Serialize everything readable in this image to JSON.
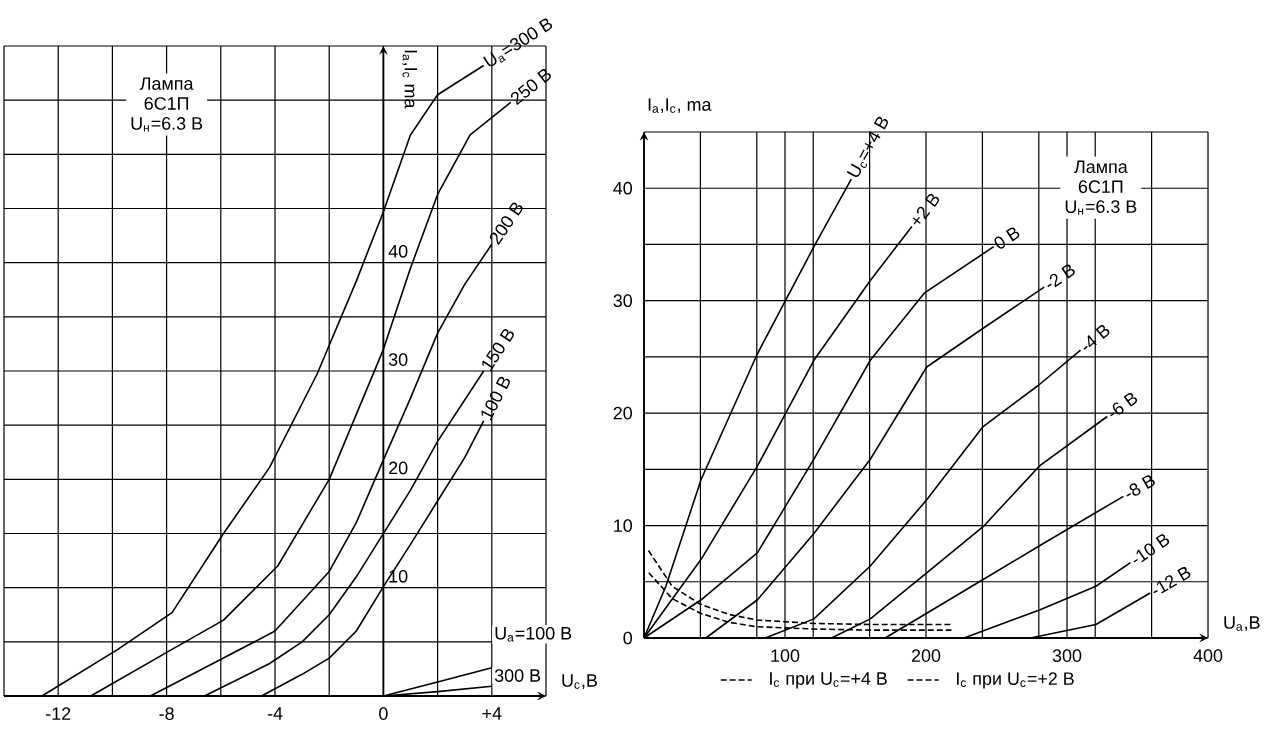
{
  "chart_data": [
    {
      "type": "line",
      "xlabel": "U$_{c}$,В",
      "ylabel": "I$_{a}$,I$_{c}$ ma",
      "annotations": [
        "Лампа",
        "6С1П",
        "U$_{н}$=6.3 В"
      ],
      "xlim": [
        -14,
        6
      ],
      "ylim": [
        0,
        60
      ],
      "xticks": [
        {
          "value": -14,
          "label": null
        },
        -12,
        {
          "value": -10,
          "label": null
        },
        -8,
        {
          "value": -6,
          "label": null
        },
        -4,
        {
          "value": -2,
          "label": null
        },
        0,
        {
          "value": 2,
          "label": null
        },
        {
          "value": 4,
          "label": "+4"
        },
        {
          "value": 6,
          "label": null
        }
      ],
      "yticks": [
        {
          "value": 0,
          "label": null
        },
        {
          "value": 5,
          "label": null
        },
        10,
        {
          "value": 15,
          "label": null
        },
        20,
        {
          "value": 25,
          "label": null
        },
        30,
        {
          "value": 35,
          "label": null
        },
        40,
        {
          "value": 45,
          "label": null
        },
        {
          "value": 50,
          "label": null
        },
        {
          "value": 55,
          "label": null
        },
        {
          "value": 60,
          "label": null
        }
      ],
      "grid": true,
      "series": [
        {
          "name": "U$_{a}$=300 В",
          "color": "#000000",
          "x": [
            -12.6,
            -9.8,
            -7.8,
            -5.9,
            -4.2,
            -2.45,
            -1,
            0,
            1,
            2,
            3.7
          ],
          "values": [
            0,
            4.3,
            7.7,
            15,
            21.1,
            29.7,
            38.3,
            44.7,
            51.8,
            55.5,
            58.2
          ]
        },
        {
          "name": "250 В",
          "color": "#000000",
          "x": [
            -10.8,
            -7.8,
            -5.9,
            -3.9,
            -2,
            -1,
            0,
            1,
            2,
            3.2,
            4.7
          ],
          "values": [
            0,
            4.3,
            7,
            12,
            20,
            26,
            32,
            39.5,
            46.3,
            51.8,
            54.8
          ]
        },
        {
          "name": "200 В",
          "color": "#000000",
          "x": [
            -8.6,
            -5.9,
            -4,
            -2,
            -1,
            0,
            1,
            2,
            3,
            4
          ],
          "values": [
            0,
            3.5,
            6,
            11.5,
            16,
            21.8,
            27.5,
            33.5,
            38,
            41.7
          ]
        },
        {
          "name": "150 В",
          "color": "#000000",
          "x": [
            -6.6,
            -4.2,
            -3,
            -2,
            -1,
            0,
            1,
            2,
            3.7
          ],
          "values": [
            0,
            3,
            5,
            7.5,
            11,
            15,
            19,
            23.5,
            30
          ]
        },
        {
          "name": "100 В",
          "color": "#000000",
          "x": [
            -4.5,
            -3,
            -2,
            -1,
            0,
            1,
            2,
            3,
            3.7
          ],
          "values": [
            0,
            2,
            3.5,
            6,
            10.1,
            14,
            18,
            22,
            25.4
          ]
        },
        {
          "name": "U$_{a}$=100 В",
          "color": "#000000",
          "x": [
            0,
            2,
            4
          ],
          "values": [
            0,
            1.3,
            2.6
          ]
        },
        {
          "name": "300 В",
          "color": "#000000",
          "x": [
            0,
            2,
            4
          ],
          "values": [
            0,
            0.4,
            0.9
          ]
        }
      ]
    },
    {
      "type": "line",
      "xlabel": "U$_{a}$,В",
      "ylabel": "I$_{a}$,I$_{c}$, ma",
      "annotations": [
        "Лампа",
        "6С1П",
        "U$_{н}$=6.3 В"
      ],
      "xlim": [
        0,
        400
      ],
      "ylim": [
        0,
        45
      ],
      "legend": "bottom",
      "xticks": [
        {
          "value": 0,
          "label": null
        },
        {
          "value": 40,
          "label": null
        },
        {
          "value": 80,
          "label": null
        },
        100,
        {
          "value": 120,
          "label": null
        },
        {
          "value": 160,
          "label": null
        },
        200,
        {
          "value": 240,
          "label": null
        },
        {
          "value": 280,
          "label": null
        },
        300,
        {
          "value": 320,
          "label": null
        },
        {
          "value": 360,
          "label": null
        },
        400
      ],
      "yticks": [
        0,
        {
          "value": 5,
          "label": null
        },
        10,
        {
          "value": 15,
          "label": null
        },
        20,
        {
          "value": 25,
          "label": null
        },
        30,
        {
          "value": 35,
          "label": null
        },
        40,
        {
          "value": 45,
          "label": null
        }
      ],
      "grid": true,
      "series": [
        {
          "name": "U$_{c}$=+4 В",
          "color": "#000000",
          "x": [
            0,
            15.5,
            40.5,
            80.5,
            120.5,
            147
          ],
          "values": [
            0,
            4.6,
            14.1,
            25.3,
            34.8,
            40.8
          ]
        },
        {
          "name": "+2 В",
          "color": "#000000",
          "x": [
            0,
            40.5,
            80.5,
            120.5,
            160.5,
            190
          ],
          "values": [
            0,
            7,
            15.3,
            24.7,
            31.8,
            36.6
          ]
        },
        {
          "name": "0 В",
          "color": "#000000",
          "x": [
            0,
            40.5,
            80.5,
            120.5,
            160.5,
            199,
            248
          ],
          "values": [
            0,
            3.4,
            7.6,
            15.9,
            24.7,
            30.7,
            34.8
          ]
        },
        {
          "name": "-2 В",
          "color": "#000000",
          "x": [
            43.8,
            80.5,
            120.5,
            160.5,
            200.5,
            240,
            283.8
          ],
          "values": [
            0,
            3.4,
            9.3,
            15.9,
            24.1,
            27.5,
            31.2
          ]
        },
        {
          "name": "-4 В",
          "color": "#000000",
          "x": [
            86,
            120.5,
            160.5,
            200.5,
            240.5,
            280,
            309.6
          ],
          "values": [
            0,
            1.7,
            6.4,
            12.3,
            18.8,
            22.5,
            25.6
          ]
        },
        {
          "name": "-6 В",
          "color": "#000000",
          "x": [
            133,
            160.5,
            200.5,
            240.5,
            280.5,
            328.5
          ],
          "values": [
            0,
            1.7,
            5.8,
            9.9,
            15.3,
            19.7
          ]
        },
        {
          "name": "-8 В",
          "color": "#000000",
          "x": [
            171,
            200.5,
            240.5,
            280.5,
            340
          ],
          "values": [
            0,
            2.2,
            5.2,
            8.2,
            12.6
          ]
        },
        {
          "name": "-10 В",
          "color": "#000000",
          "x": [
            227,
            280.5,
            320.5,
            345
          ],
          "values": [
            0,
            2.5,
            4.6,
            6.7
          ]
        },
        {
          "name": "-12 В",
          "color": "#000000",
          "x": [
            274,
            320.5,
            359
          ],
          "values": [
            0,
            1.2,
            4
          ]
        },
        {
          "name": "I$_{c}$ при U$_{c}$=+4 В",
          "color": "#000000",
          "line_style": "dashed",
          "x": [
            2,
            20,
            40,
            60,
            80,
            120,
            160,
            218
          ],
          "values": [
            8,
            4.6,
            3,
            2.1,
            1.6,
            1.3,
            1.2,
            1.2
          ]
        },
        {
          "name": "I$_{c}$ при U$_{c}$=+2 В",
          "color": "#000000",
          "line_style": "dashed",
          "x": [
            2,
            20,
            40,
            60,
            80,
            120,
            160,
            218
          ],
          "values": [
            6,
            3.5,
            2.2,
            1.4,
            1,
            0.8,
            0.7,
            0.7
          ]
        }
      ]
    }
  ]
}
